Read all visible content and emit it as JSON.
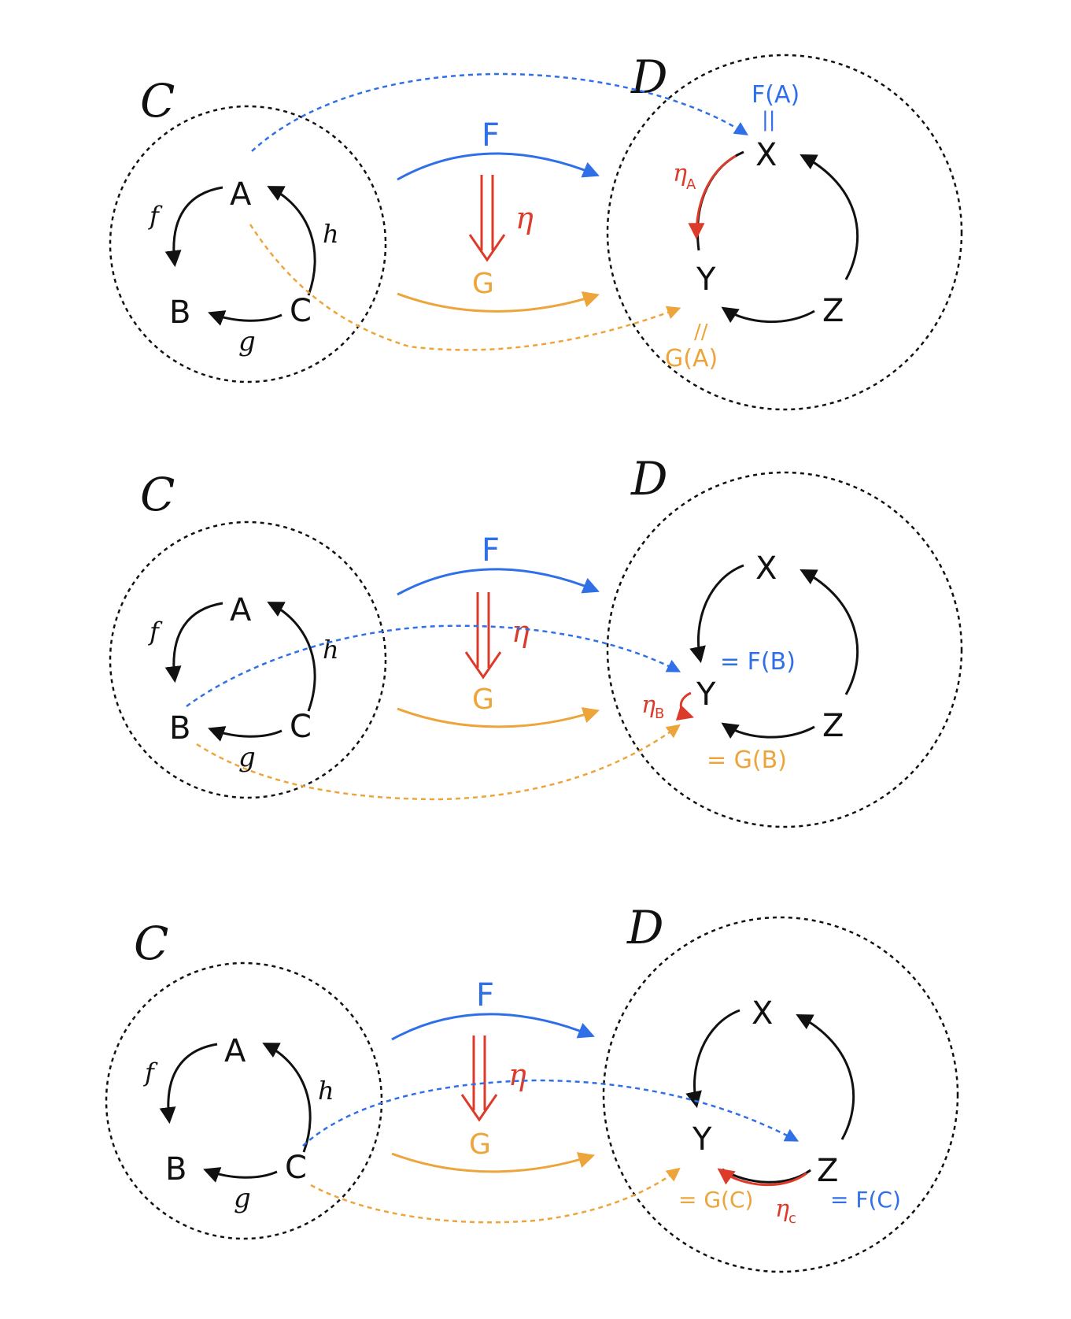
{
  "colors": {
    "black": "#111111",
    "blue": "#2f6fe8",
    "orange": "#eda43a",
    "red": "#dd3b2a"
  },
  "panels": [
    {
      "source_category": "C",
      "target_category": "D",
      "source_objects": {
        "a": "A",
        "b": "B",
        "c": "C"
      },
      "source_morphisms": {
        "f": "f",
        "g": "g",
        "h": "h"
      },
      "target_objects": {
        "x": "X",
        "y": "Y",
        "z": "Z"
      },
      "functors": {
        "F": "F",
        "G": "G",
        "eta": "η"
      },
      "component": {
        "label": "η",
        "subscript": "A"
      },
      "annotations": {
        "f_of": "F(A)",
        "f_eq": "||",
        "g_of": "G(A)",
        "g_eq": "//"
      }
    },
    {
      "source_category": "C",
      "target_category": "D",
      "source_objects": {
        "a": "A",
        "b": "B",
        "c": "C"
      },
      "source_morphisms": {
        "f": "f",
        "g": "g",
        "h": "h"
      },
      "target_objects": {
        "x": "X",
        "y": "Y",
        "z": "Z"
      },
      "functors": {
        "F": "F",
        "G": "G",
        "eta": "η"
      },
      "component": {
        "label": "η",
        "subscript": "B"
      },
      "annotations": {
        "f_of": "= F(B)",
        "g_of": "= G(B)"
      }
    },
    {
      "source_category": "C",
      "target_category": "D",
      "source_objects": {
        "a": "A",
        "b": "B",
        "c": "C"
      },
      "source_morphisms": {
        "f": "f",
        "g": "g",
        "h": "h"
      },
      "target_objects": {
        "x": "X",
        "y": "Y",
        "z": "Z"
      },
      "functors": {
        "F": "F",
        "G": "G",
        "eta": "η"
      },
      "component": {
        "label": "η",
        "subscript": "c"
      },
      "annotations": {
        "f_of": "= F(C)",
        "g_of": "= G(C)"
      }
    }
  ]
}
